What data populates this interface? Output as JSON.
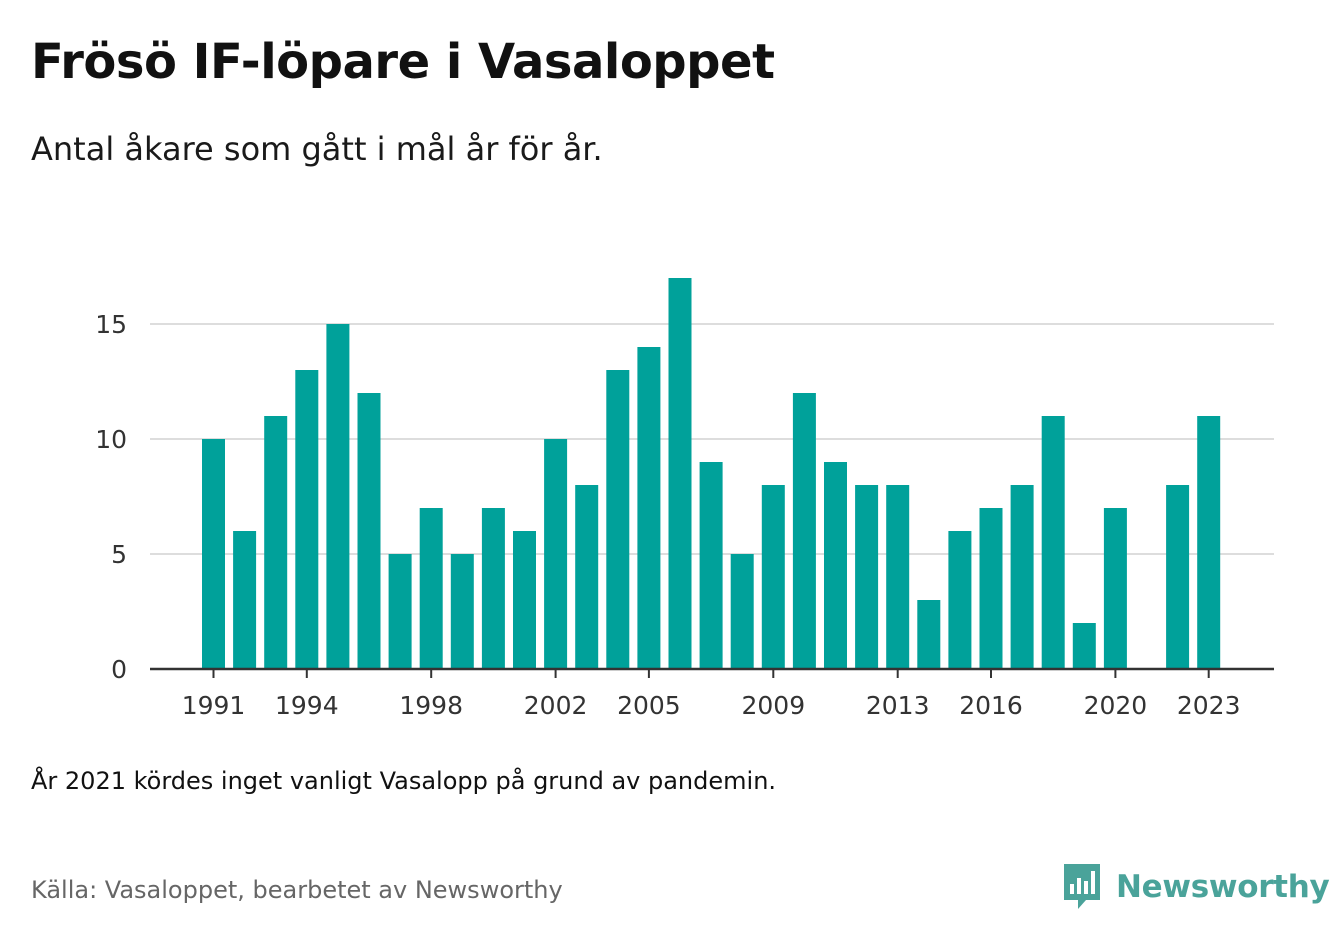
{
  "title": "Frösö IF-löpare i Vasaloppet",
  "subtitle": "Antal åkare som gått i mål år för år.",
  "note": "År 2021 kördes inget vanligt Vasalopp på grund av pandemin.",
  "source": "Källa: Vasaloppet, bearbetet av Newsworthy",
  "logo": {
    "text": "Newsworthy",
    "icon": "newsworthy-bar-chart-icon"
  },
  "colors": {
    "bar": "#00a19a",
    "grid": "#dddddd",
    "axis": "#333333",
    "logo": "#4aa39a"
  },
  "chart_data": {
    "type": "bar",
    "x": [
      1991,
      1992,
      1993,
      1994,
      1995,
      1996,
      1997,
      1998,
      1999,
      2000,
      2001,
      2002,
      2003,
      2004,
      2005,
      2006,
      2007,
      2008,
      2009,
      2010,
      2011,
      2012,
      2013,
      2014,
      2015,
      2016,
      2017,
      2018,
      2019,
      2020,
      2021,
      2022,
      2023
    ],
    "values": [
      10,
      6,
      11,
      13,
      15,
      12,
      5,
      7,
      5,
      7,
      6,
      10,
      8,
      13,
      14,
      17,
      9,
      5,
      8,
      12,
      9,
      8,
      8,
      3,
      6,
      7,
      8,
      11,
      2,
      7,
      null,
      8,
      11
    ],
    "x_tick_labels": [
      "1991",
      "1994",
      "1998",
      "2002",
      "2005",
      "2009",
      "2013",
      "2016",
      "2020",
      "2023"
    ],
    "y_ticks": [
      0,
      5,
      10,
      15
    ],
    "ylim": [
      0,
      18
    ],
    "grid": true,
    "xlabel": "",
    "ylabel": ""
  }
}
